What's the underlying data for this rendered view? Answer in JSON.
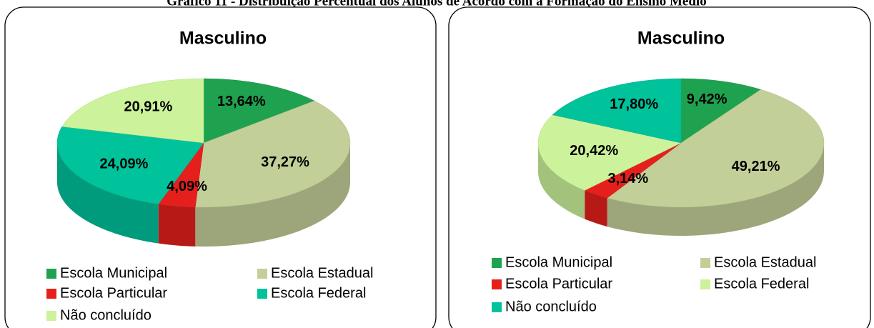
{
  "caption": "Gráfico 11 - Distribuição Percentual dos Alunos de Acordo com a Formação do Ensino Médio",
  "chart_data": [
    {
      "type": "pie",
      "title": "Masculino",
      "categories": [
        "Escola Municipal",
        "Escola Estadual",
        "Escola Particular",
        "Escola Federal",
        "Não concluído"
      ],
      "values": [
        13.64,
        37.27,
        4.09,
        24.09,
        20.91
      ],
      "value_labels": [
        "13,64%",
        "37,27%",
        "4,09%",
        "24,09%",
        "20,91%"
      ],
      "colors": [
        "#1fa24f",
        "#c3cf98",
        "#e5201c",
        "#00c29b",
        "#ccf29b"
      ]
    },
    {
      "type": "pie",
      "title": "Masculino",
      "categories": [
        "Escola Municipal",
        "Escola Estadual",
        "Escola Particular",
        "Escola Federal",
        "Não concluído"
      ],
      "values": [
        9.42,
        49.21,
        3.14,
        20.42,
        17.8
      ],
      "value_labels": [
        "9,42%",
        "49,21%",
        "3,14%",
        "20,42%",
        "17,80%"
      ],
      "colors": [
        "#1fa24f",
        "#c3cf98",
        "#e5201c",
        "#ccf29b",
        "#00c29b"
      ]
    }
  ]
}
